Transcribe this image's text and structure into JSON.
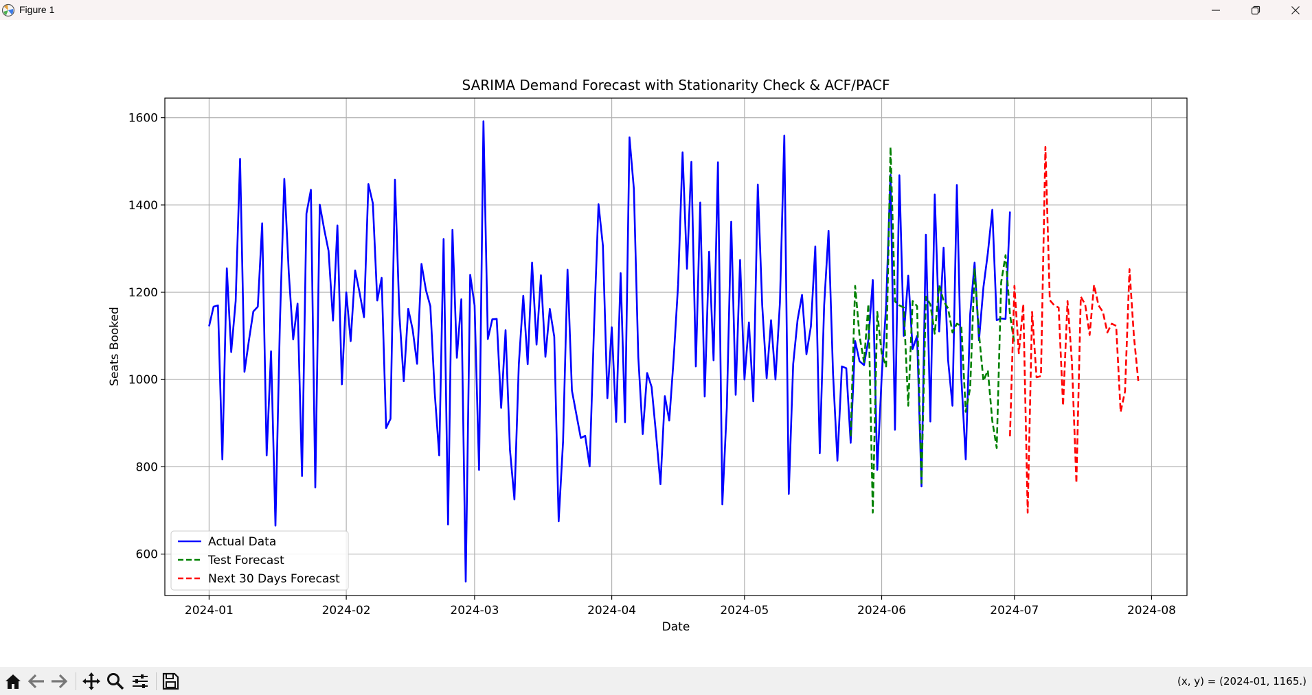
{
  "window": {
    "title": "Figure 1",
    "minimize_icon": "minimize-icon",
    "restore_icon": "restore-icon",
    "close_icon": "close-icon"
  },
  "toolbar": {
    "buttons": [
      "home-icon",
      "back-arrow-icon",
      "forward-arrow-icon",
      "pan-icon",
      "zoom-icon",
      "configure-subplots-icon",
      "save-icon"
    ],
    "coords_text": "(x, y) = (2024-01, 1165.)"
  },
  "chart_data": {
    "type": "line",
    "title": "SARIMA Demand Forecast with Stationarity Check & ACF/PACF",
    "xlabel": "Date",
    "ylabel": "Seats Booked",
    "x_range": [
      "2023-12-22",
      "2024-08-09"
    ],
    "ylim": [
      505,
      1645
    ],
    "x_ticks": [
      "2024-01",
      "2024-02",
      "2024-03",
      "2024-04",
      "2024-05",
      "2024-06",
      "2024-07",
      "2024-08"
    ],
    "y_ticks": [
      600,
      800,
      1000,
      1200,
      1400,
      1600
    ],
    "grid": true,
    "legend_position": "lower-left",
    "series": [
      {
        "name": "Actual Data",
        "color": "#0000ff",
        "style": "solid",
        "start_date": "2024-01-01",
        "values": [
          1122,
          1167,
          1170,
          817,
          1255,
          1063,
          1180,
          1506,
          1018,
          1090,
          1156,
          1167,
          1358,
          826,
          1065,
          665,
          1130,
          1460,
          1245,
          1092,
          1174,
          779,
          1380,
          1435,
          753,
          1401,
          1345,
          1295,
          1135,
          1353,
          989,
          1200,
          1088,
          1250,
          1200,
          1143,
          1448,
          1404,
          1181,
          1233,
          889,
          910,
          1458,
          1150,
          996,
          1162,
          1115,
          1036,
          1265,
          1205,
          1168,
          969,
          826,
          1322,
          668,
          1343,
          1050,
          1184,
          537,
          1240,
          1170,
          793,
          1592,
          1093,
          1138,
          1139,
          935,
          1113,
          839,
          725,
          1035,
          1192,
          1035,
          1268,
          1080,
          1239,
          1052,
          1162,
          1098,
          675,
          858,
          1252,
          975,
          920,
          866,
          871,
          801,
          1120,
          1402,
          1307,
          957,
          1120,
          903,
          1244,
          902,
          1555,
          1437,
          1052,
          875,
          1015,
          983,
          876,
          760,
          962,
          906,
          1050,
          1218,
          1521,
          1254,
          1499,
          1030,
          1406,
          961,
          1293,
          1044,
          1498,
          714,
          935,
          1362,
          965,
          1274,
          1000,
          1131,
          950,
          1447,
          1171,
          1003,
          1136,
          1000,
          1176,
          1559,
          738,
          1035,
          1137,
          1194,
          1058,
          1122,
          1305,
          831,
          1170,
          1341,
          1015,
          814,
          1030,
          1026,
          855,
          1088,
          1042,
          1033,
          1091,
          1228,
          793,
          1005,
          1170,
          1469,
          885,
          1468,
          1100,
          1238,
          1070,
          1100,
          755,
          1332,
          904,
          1424,
          1110,
          1302,
          1045,
          940,
          1446,
          1004,
          817,
          1150,
          1268,
          1090,
          1212,
          1290,
          1389,
          1136,
          1140,
          1139,
          1385
        ]
      },
      {
        "name": "Test Forecast",
        "color": "#008000",
        "style": "dashed",
        "start_date": "2024-05-25",
        "values": [
          870,
          1215,
          1100,
          1040,
          1173,
          695,
          1155,
          1060,
          1030,
          1533,
          1179,
          1170,
          1165,
          940,
          1180,
          1168,
          763,
          1190,
          1172,
          1105,
          1217,
          1180,
          1163,
          1108,
          1128,
          1123,
          926,
          981,
          1253,
          1105,
          997,
          1021,
          905,
          843,
          1223,
          1285,
          1149,
          1081
        ]
      },
      {
        "name": "Next 30 Days Forecast",
        "color": "#ff0000",
        "style": "dashed",
        "start_date": "2024-06-30",
        "values": [
          870,
          1215,
          1060,
          1173,
          695,
          1155,
          1005,
          1008,
          1533,
          1182,
          1170,
          1165,
          940,
          1180,
          1040,
          763,
          1190,
          1172,
          1102,
          1217,
          1170,
          1155,
          1108,
          1128,
          1123,
          926,
          973,
          1253,
          1100,
          997
        ]
      }
    ]
  }
}
